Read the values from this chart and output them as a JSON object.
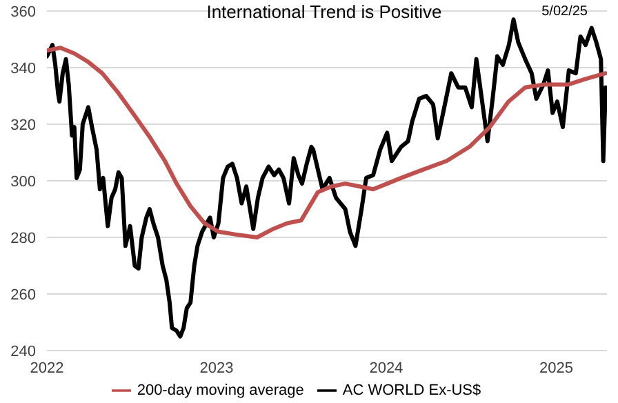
{
  "chart_data": {
    "type": "line",
    "title": "International Trend is Positive",
    "annotations": [
      "5/02/25"
    ],
    "xlim": [
      "2022-01-01",
      "2025-04-20"
    ],
    "xticks": [
      "2022",
      "2023",
      "2024",
      "2025"
    ],
    "ylim": [
      240,
      360
    ],
    "yticks": [
      240,
      260,
      280,
      300,
      320,
      340,
      360
    ],
    "grid": "y",
    "legend": "bottom",
    "marker": "none",
    "line_style": "solid",
    "series": [
      {
        "name": "AC WORLD Ex-US$",
        "color": "#000000",
        "x": [
          "2022-01-01",
          "2022-01-13",
          "2022-01-19",
          "2022-01-25",
          "2022-01-28",
          "2022-02-04",
          "2022-02-11",
          "2022-02-17",
          "2022-02-24",
          "2022-03-01",
          "2022-03-06",
          "2022-03-13",
          "2022-03-19",
          "2022-03-31",
          "2022-04-08",
          "2022-04-18",
          "2022-04-25",
          "2022-05-02",
          "2022-05-12",
          "2022-05-20",
          "2022-05-28",
          "2022-06-04",
          "2022-06-11",
          "2022-06-19",
          "2022-06-29",
          "2022-07-09",
          "2022-07-17",
          "2022-07-24",
          "2022-08-03",
          "2022-08-10",
          "2022-08-18",
          "2022-08-28",
          "2022-09-07",
          "2022-09-15",
          "2022-09-22",
          "2022-09-27",
          "2022-10-07",
          "2022-10-15",
          "2022-10-22",
          "2022-10-29",
          "2022-11-06",
          "2022-11-14",
          "2022-11-21",
          "2022-12-01",
          "2022-12-11",
          "2022-12-18",
          "2022-12-26",
          "2023-01-05",
          "2023-01-15",
          "2023-01-25",
          "2023-02-04",
          "2023-02-14",
          "2023-02-24",
          "2023-03-06",
          "2023-03-21",
          "2023-03-31",
          "2023-04-10",
          "2023-04-23",
          "2023-05-05",
          "2023-05-15",
          "2023-05-25",
          "2023-06-06",
          "2023-06-16",
          "2023-06-26",
          "2023-07-04",
          "2023-07-14",
          "2023-07-24",
          "2023-07-28",
          "2023-08-17",
          "2023-09-01",
          "2023-09-15",
          "2023-10-05",
          "2023-10-15",
          "2023-10-27",
          "2023-11-09",
          "2023-11-19",
          "2023-12-04",
          "2023-12-19",
          "2024-01-03",
          "2024-01-13",
          "2024-02-02",
          "2024-02-17",
          "2024-02-26",
          "2024-03-12",
          "2024-03-27",
          "2024-04-11",
          "2024-04-21",
          "2024-05-05",
          "2024-05-20",
          "2024-06-04",
          "2024-06-19",
          "2024-07-03",
          "2024-07-13",
          "2024-07-23",
          "2024-08-06",
          "2024-08-17",
          "2024-08-27",
          "2024-09-08",
          "2024-09-21",
          "2024-10-01",
          "2024-10-11",
          "2024-10-26",
          "2024-11-09",
          "2024-11-19",
          "2024-12-04",
          "2024-12-14",
          "2024-12-24",
          "2025-01-03",
          "2025-01-15",
          "2025-01-28",
          "2025-02-12",
          "2025-02-22",
          "2025-03-05",
          "2025-03-18",
          "2025-03-28",
          "2025-04-07",
          "2025-04-12",
          "2025-04-17"
        ],
        "values": [
          344,
          348,
          341,
          331,
          328,
          338,
          343,
          334,
          316,
          319,
          301,
          304,
          320,
          326,
          319,
          311,
          297,
          301,
          284,
          294,
          297,
          303,
          301,
          277,
          284,
          270,
          269,
          280,
          287,
          290,
          285,
          280,
          270,
          265,
          257,
          248,
          247,
          245,
          248,
          255,
          257,
          270,
          277,
          282,
          285,
          287,
          280,
          285,
          301,
          305,
          306,
          301,
          292,
          298,
          283,
          294,
          301,
          305,
          302,
          304,
          301,
          292,
          308,
          302,
          299,
          306,
          312,
          311,
          297,
          301,
          294,
          290,
          282,
          277,
          290,
          301,
          302,
          311,
          317,
          307,
          312,
          314,
          321,
          329,
          330,
          327,
          315,
          326,
          338,
          333,
          333,
          326,
          343,
          331,
          314,
          329,
          344,
          341,
          348,
          357,
          349,
          343,
          338,
          329,
          334,
          339,
          324,
          328,
          319,
          339,
          338,
          351,
          348,
          354,
          349,
          343,
          307,
          333
        ]
      },
      {
        "name": "200-day moving average",
        "color": "#c0504d",
        "x": [
          "2022-01-01",
          "2022-01-30",
          "2022-03-01",
          "2022-03-31",
          "2022-04-30",
          "2022-06-04",
          "2022-07-09",
          "2022-08-08",
          "2022-09-12",
          "2022-10-07",
          "2022-11-06",
          "2022-12-06",
          "2023-01-05",
          "2023-02-12",
          "2023-03-29",
          "2023-05-03",
          "2023-06-02",
          "2023-07-02",
          "2023-08-07",
          "2023-09-05",
          "2023-10-05",
          "2023-11-05",
          "2023-12-04",
          "2024-01-03",
          "2024-02-02",
          "2024-03-21",
          "2024-05-10",
          "2024-06-28",
          "2024-08-11",
          "2024-09-20",
          "2024-10-26",
          "2024-12-04",
          "2025-01-26",
          "2025-03-05",
          "2025-04-17"
        ],
        "values": [
          346,
          347,
          345,
          342,
          338,
          331,
          323,
          316,
          307,
          299,
          291,
          285,
          282,
          281,
          280,
          283,
          285,
          286,
          296,
          298,
          299,
          298,
          297,
          299,
          301,
          304,
          307,
          312,
          319,
          328,
          333,
          334,
          334,
          336,
          338
        ]
      }
    ]
  }
}
